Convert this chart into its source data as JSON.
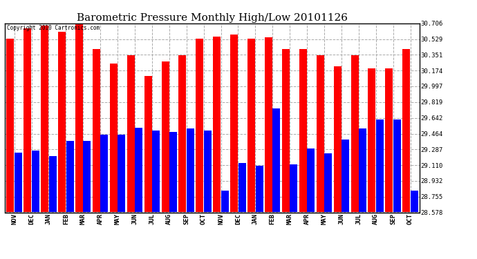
{
  "title": "Barometric Pressure Monthly High/Low 20101126",
  "copyright": "Copyright 2010 Cartronics.com",
  "months": [
    "NOV",
    "DEC",
    "JAN",
    "FEB",
    "MAR",
    "APR",
    "MAY",
    "JUN",
    "JUL",
    "AUG",
    "SEP",
    "OCT",
    "NOV",
    "DEC",
    "JAN",
    "FEB",
    "MAR",
    "APR",
    "MAY",
    "JUN",
    "JUL",
    "AUG",
    "SEP",
    "OCT"
  ],
  "highs": [
    30.53,
    30.65,
    30.68,
    30.61,
    30.71,
    30.42,
    30.25,
    30.35,
    30.11,
    30.28,
    30.35,
    30.53,
    30.56,
    30.58,
    30.53,
    30.55,
    30.42,
    30.42,
    30.35,
    30.22,
    30.35,
    30.2,
    30.2,
    30.42
  ],
  "lows": [
    29.25,
    29.27,
    29.21,
    29.38,
    29.38,
    29.45,
    29.45,
    29.53,
    29.5,
    29.48,
    29.52,
    29.5,
    28.82,
    29.13,
    29.1,
    29.75,
    29.12,
    29.3,
    29.24,
    29.4,
    29.52,
    29.62,
    29.62,
    28.82
  ],
  "bar_color_high": "#ff0000",
  "bar_color_low": "#0000ff",
  "background_color": "#ffffff",
  "grid_color": "#aaaaaa",
  "yticks": [
    28.578,
    28.755,
    28.932,
    29.11,
    29.287,
    29.464,
    29.642,
    29.819,
    29.997,
    30.174,
    30.351,
    30.529,
    30.706
  ],
  "ymin": 28.578,
  "ymax": 30.706,
  "title_fontsize": 11,
  "tick_fontsize": 6.5
}
